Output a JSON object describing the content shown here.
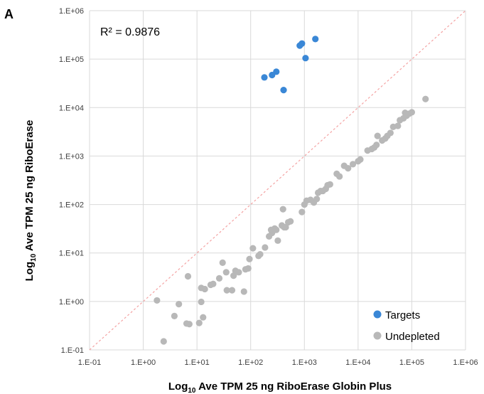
{
  "panel_label": "A",
  "chart_data": {
    "type": "scatter",
    "title": "",
    "xlabel": {
      "prefix": "Log",
      "sub": "10",
      "rest": " Ave TPM 25 ng RiboErase Globin Plus"
    },
    "ylabel": {
      "prefix": "Log",
      "sub": "10",
      "rest": " Ave TPM 25 ng RiboErase"
    },
    "xscale": "log",
    "yscale": "log",
    "xlim": [
      0.1,
      1000000
    ],
    "ylim": [
      0.1,
      1000000
    ],
    "x_ticks": [
      "1.E-01",
      "1.E+00",
      "1.E+01",
      "1.E+02",
      "1.E+03",
      "1.E+04",
      "1.E+05",
      "1.E+06"
    ],
    "y_ticks": [
      "1.E-01",
      "1.E+00",
      "1.E+01",
      "1.E+02",
      "1.E+03",
      "1.E+04",
      "1.E+05",
      "1.E+06"
    ],
    "grid": true,
    "annotation": "R² = 0.9876",
    "reference_line": {
      "style": "dashed",
      "color": "#f4a3a3",
      "from": [
        0.1,
        0.1
      ],
      "to": [
        1000000,
        1000000
      ]
    },
    "legend_position": "bottom-right",
    "series": [
      {
        "name": "Targets",
        "color": "#3a87d6",
        "points": [
          [
            180,
            42000
          ],
          [
            250,
            47000
          ],
          [
            300,
            55000
          ],
          [
            410,
            23000
          ],
          [
            820,
            190000
          ],
          [
            900,
            210000
          ],
          [
            1050,
            105000
          ],
          [
            1600,
            260000
          ]
        ]
      },
      {
        "name": "Undepleted",
        "color": "#b8b8b8",
        "points": [
          [
            1.8,
            1.05
          ],
          [
            2.4,
            0.15
          ],
          [
            3.8,
            0.5
          ],
          [
            4.6,
            0.88
          ],
          [
            6.4,
            0.35
          ],
          [
            7.2,
            0.34
          ],
          [
            6.8,
            3.3
          ],
          [
            11,
            0.36
          ],
          [
            12,
            1.9
          ],
          [
            12,
            0.98
          ],
          [
            13,
            0.47
          ],
          [
            14,
            1.8
          ],
          [
            18,
            2.2
          ],
          [
            20,
            2.3
          ],
          [
            26,
            3.0
          ],
          [
            30,
            6.3
          ],
          [
            35,
            4.0
          ],
          [
            36,
            1.7
          ],
          [
            45,
            1.7
          ],
          [
            48,
            3.4
          ],
          [
            52,
            4.3
          ],
          [
            60,
            4.0
          ],
          [
            75,
            1.6
          ],
          [
            80,
            4.6
          ],
          [
            90,
            4.8
          ],
          [
            95,
            7.5
          ],
          [
            110,
            12.5
          ],
          [
            140,
            8.7
          ],
          [
            150,
            9.4
          ],
          [
            185,
            13
          ],
          [
            220,
            22
          ],
          [
            240,
            30
          ],
          [
            250,
            26
          ],
          [
            280,
            32
          ],
          [
            300,
            30
          ],
          [
            320,
            18
          ],
          [
            380,
            37
          ],
          [
            400,
            80
          ],
          [
            420,
            34
          ],
          [
            450,
            34
          ],
          [
            500,
            43
          ],
          [
            550,
            45
          ],
          [
            900,
            70
          ],
          [
            1000,
            100
          ],
          [
            1100,
            120
          ],
          [
            1300,
            125
          ],
          [
            1500,
            110
          ],
          [
            1700,
            130
          ],
          [
            1800,
            175
          ],
          [
            2000,
            190
          ],
          [
            2200,
            190
          ],
          [
            2500,
            210
          ],
          [
            2700,
            250
          ],
          [
            3000,
            260
          ],
          [
            4000,
            430
          ],
          [
            4500,
            380
          ],
          [
            5500,
            630
          ],
          [
            6500,
            560
          ],
          [
            8000,
            680
          ],
          [
            10000,
            780
          ],
          [
            11000,
            850
          ],
          [
            15000,
            1300
          ],
          [
            18000,
            1400
          ],
          [
            20000,
            1500
          ],
          [
            22000,
            1700
          ],
          [
            23000,
            2600
          ],
          [
            28000,
            2100
          ],
          [
            32000,
            2300
          ],
          [
            35000,
            2600
          ],
          [
            40000,
            3000
          ],
          [
            45000,
            4000
          ],
          [
            55000,
            4200
          ],
          [
            60000,
            5500
          ],
          [
            70000,
            6000
          ],
          [
            75000,
            7800
          ],
          [
            80000,
            6800
          ],
          [
            90000,
            7500
          ],
          [
            100000,
            8000
          ],
          [
            180000,
            15000
          ]
        ]
      }
    ]
  }
}
